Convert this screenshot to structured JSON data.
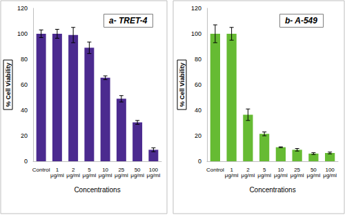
{
  "chart_data": [
    {
      "type": "bar",
      "title": "a- TRET-4",
      "categories": [
        "Control",
        "1 μg/ml",
        "2 μg/ml",
        "5 μg/ml",
        "10 μg/ml",
        "25 μg/ml",
        "50 μg/ml",
        "100 μg/ml"
      ],
      "values": [
        100,
        100,
        99,
        89,
        65.5,
        49,
        30.5,
        9
      ],
      "errors": [
        3,
        3.5,
        6,
        4.5,
        1.5,
        2.5,
        1.5,
        1.5
      ],
      "color": "#4b2a8f",
      "xlabel": "Concentrations",
      "ylabel": "% Cell Viability",
      "ylim": [
        0,
        120
      ],
      "yticks": [
        0,
        20,
        40,
        60,
        80,
        100,
        120
      ],
      "grid": false
    },
    {
      "type": "bar",
      "title": "b- A-549",
      "categories": [
        "Control",
        "1 μg/ml",
        "2 μg/ml",
        "5 μg/ml",
        "10 μg/ml",
        "25 μg/ml",
        "50 μg/ml",
        "100 μg/ml"
      ],
      "values": [
        100,
        100,
        36.5,
        21.5,
        11,
        9,
        6,
        6.5
      ],
      "errors": [
        7,
        5,
        4.5,
        1.5,
        0.3,
        1,
        0.7,
        0.7
      ],
      "color": "#66bb33",
      "xlabel": "Concentrations",
      "ylabel": "% Cell Viability",
      "ylim": [
        0,
        120
      ],
      "yticks": [
        0,
        20,
        40,
        60,
        80,
        100,
        120
      ],
      "grid": false
    }
  ]
}
